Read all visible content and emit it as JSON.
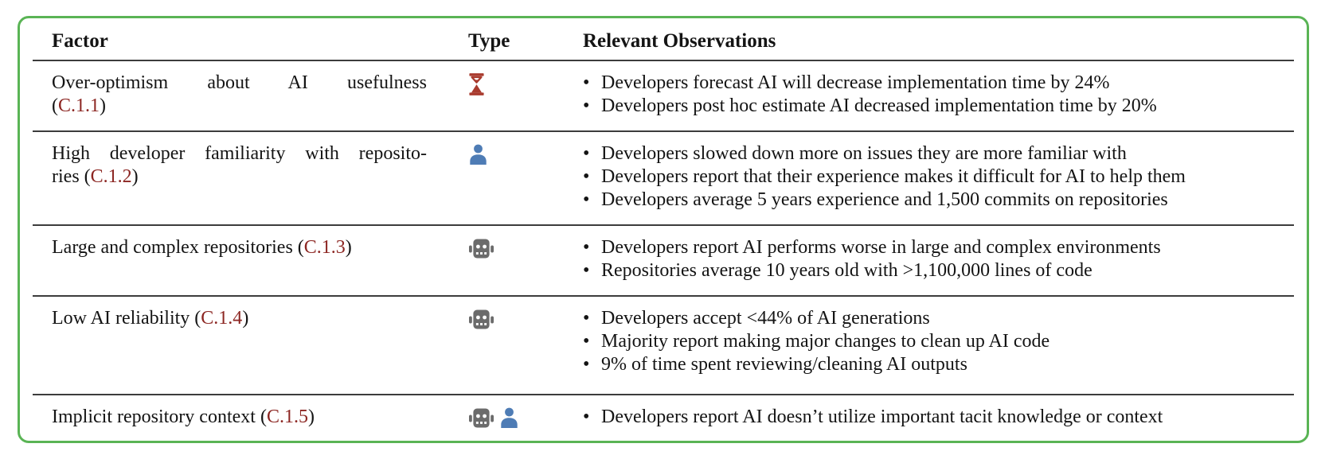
{
  "card": {
    "border_color": "#5ab455"
  },
  "table": {
    "headers": [
      "Factor",
      "Type",
      "Relevant Observations"
    ],
    "ref_color": "#8c2622",
    "icon_colors": {
      "hourglass": "#a93b2e",
      "person": "#4e7cb5",
      "robot": "#6b6b6b"
    },
    "rows": [
      {
        "factor_lines": [
          {
            "stretch": true,
            "segments": [
              {
                "text": "Over-optimism about AI usefulness"
              }
            ]
          },
          {
            "stretch": false,
            "segments": [
              {
                "text": "("
              },
              {
                "text": "C.1.1",
                "ref": true
              },
              {
                "text": ")"
              }
            ]
          }
        ],
        "icons": [
          "hourglass"
        ],
        "observations": [
          "Developers forecast AI will decrease implementation time by 24%",
          "Developers post hoc estimate AI decreased implementation time by 20%"
        ]
      },
      {
        "factor_lines": [
          {
            "stretch": true,
            "segments": [
              {
                "text": "High developer familiarity with reposito-"
              }
            ]
          },
          {
            "stretch": false,
            "segments": [
              {
                "text": "ries ("
              },
              {
                "text": "C.1.2",
                "ref": true
              },
              {
                "text": ")"
              }
            ]
          }
        ],
        "icons": [
          "person"
        ],
        "observations": [
          "Developers slowed down more on issues they are more familiar with",
          "Developers report that their experience makes it difficult for AI to help them",
          "Developers average 5 years experience and 1,500 commits on repositories"
        ]
      },
      {
        "factor_lines": [
          {
            "stretch": false,
            "segments": [
              {
                "text": "Large and complex repositories ("
              },
              {
                "text": "C.1.3",
                "ref": true
              },
              {
                "text": ")"
              }
            ]
          }
        ],
        "icons": [
          "robot"
        ],
        "observations": [
          "Developers report AI performs worse in large and complex environments",
          "Repositories average 10 years old with >1,100,000 lines of code"
        ]
      },
      {
        "factor_lines": [
          {
            "stretch": false,
            "segments": [
              {
                "text": "Low AI reliability ("
              },
              {
                "text": "C.1.4",
                "ref": true
              },
              {
                "text": ")"
              }
            ]
          }
        ],
        "icons": [
          "robot"
        ],
        "observations": [
          "Developers accept <44% of AI generations",
          "Majority report making major changes to clean up AI code",
          "9% of time spent reviewing/cleaning AI outputs"
        ]
      },
      {
        "factor_lines": [
          {
            "stretch": false,
            "segments": [
              {
                "text": "Implicit repository context ("
              },
              {
                "text": "C.1.5",
                "ref": true
              },
              {
                "text": ")"
              }
            ]
          }
        ],
        "icons": [
          "robot",
          "person"
        ],
        "observations": [
          "Developers report AI doesn’t utilize important tacit knowledge or context"
        ]
      }
    ]
  }
}
